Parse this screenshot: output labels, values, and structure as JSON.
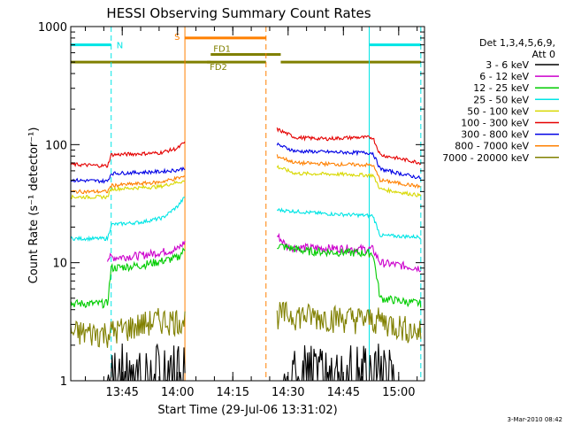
{
  "chart_data": {
    "type": "line",
    "title": "HESSI Observing Summary Count Rates",
    "xlabel": "Start Time (29-Jul-06 13:31:02)",
    "ylabel": "Count Rate (s⁻¹ detector⁻¹)",
    "yscale": "log",
    "ylim": [
      1,
      1000
    ],
    "xlim": [
      "13:31:02",
      "15:07:00"
    ],
    "x_ticks": [
      "13:45",
      "14:00",
      "14:15",
      "14:30",
      "14:45",
      "15:00"
    ],
    "y_ticks": [
      "1",
      "10",
      "100",
      "1000"
    ],
    "legend_title": [
      "Det 1,3,4,5,6,9,",
      "Att 0"
    ],
    "legend_position": "right",
    "footer_date": "3-Mar-2010 08:42",
    "gap": [
      "14:02",
      "14:27"
    ],
    "series": [
      {
        "name": "3 - 6 keV",
        "color": "#000000",
        "points": [
          [
            "13:41",
            1.4
          ],
          [
            "13:55",
            1.4
          ],
          [
            "14:01",
            1.4
          ],
          [
            "14:29",
            1.6
          ],
          [
            "14:40",
            1.5
          ],
          [
            "14:55",
            1.5
          ],
          [
            "14:59",
            1.4
          ]
        ]
      },
      {
        "name": "6 - 12 keV",
        "color": "#cc00cc",
        "points": [
          [
            "13:41",
            11
          ],
          [
            "13:50",
            11.5
          ],
          [
            "14:00",
            13
          ],
          [
            "14:02",
            15
          ],
          [
            "14:27",
            17
          ],
          [
            "14:30",
            13.5
          ],
          [
            "14:40",
            13.3
          ],
          [
            "14:53",
            13
          ],
          [
            "14:55",
            10
          ],
          [
            "15:06",
            9
          ]
        ]
      },
      {
        "name": "12 - 25 keV",
        "color": "#00cc00",
        "points": [
          [
            "13:31",
            4.5
          ],
          [
            "13:41",
            4.5
          ],
          [
            "13:42",
            9
          ],
          [
            "13:50",
            9.5
          ],
          [
            "14:00",
            11
          ],
          [
            "14:02",
            13
          ],
          [
            "14:27",
            14
          ],
          [
            "14:35",
            12.5
          ],
          [
            "14:53",
            12
          ],
          [
            "14:55",
            5
          ],
          [
            "15:06",
            4.5
          ]
        ]
      },
      {
        "name": "25 - 50 keV",
        "color": "#00e5e5",
        "points": [
          [
            "13:31",
            16
          ],
          [
            "13:41",
            16
          ],
          [
            "13:42",
            21
          ],
          [
            "13:50",
            22
          ],
          [
            "13:56",
            24
          ],
          [
            "14:00",
            30
          ],
          [
            "14:02",
            36
          ],
          [
            "14:27",
            28
          ],
          [
            "14:40",
            26
          ],
          [
            "14:53",
            25
          ],
          [
            "14:55",
            17
          ],
          [
            "15:06",
            16.5
          ]
        ]
      },
      {
        "name": "50 - 100 keV",
        "color": "#d8d800",
        "points": [
          [
            "13:31",
            36
          ],
          [
            "13:41",
            36
          ],
          [
            "13:42",
            42
          ],
          [
            "13:55",
            44
          ],
          [
            "14:00",
            48
          ],
          [
            "14:27",
            65
          ],
          [
            "14:32",
            57
          ],
          [
            "14:45",
            56
          ],
          [
            "14:53",
            55
          ],
          [
            "14:55",
            42
          ],
          [
            "15:06",
            37
          ]
        ]
      },
      {
        "name": "100 - 300 keV",
        "color": "#e50000",
        "points": [
          [
            "13:31",
            68
          ],
          [
            "13:41",
            66
          ],
          [
            "13:42",
            82
          ],
          [
            "13:55",
            85
          ],
          [
            "14:00",
            93
          ],
          [
            "14:02",
            105
          ],
          [
            "14:27",
            135
          ],
          [
            "14:32",
            115
          ],
          [
            "14:40",
            112
          ],
          [
            "14:48",
            115
          ],
          [
            "14:53",
            115
          ],
          [
            "14:55",
            82
          ],
          [
            "15:06",
            70
          ]
        ]
      },
      {
        "name": "300 - 800 keV",
        "color": "#0000e5",
        "points": [
          [
            "13:31",
            50
          ],
          [
            "13:41",
            49
          ],
          [
            "13:42",
            57
          ],
          [
            "13:55",
            59
          ],
          [
            "14:00",
            61
          ],
          [
            "14:27",
            100
          ],
          [
            "14:32",
            88
          ],
          [
            "14:45",
            86
          ],
          [
            "14:53",
            85
          ],
          [
            "14:55",
            62
          ],
          [
            "15:06",
            52
          ]
        ]
      },
      {
        "name": "800 - 7000 keV",
        "color": "#ff8000",
        "points": [
          [
            "13:31",
            40
          ],
          [
            "13:41",
            40
          ],
          [
            "13:42",
            45
          ],
          [
            "13:55",
            48
          ],
          [
            "14:00",
            52
          ],
          [
            "14:27",
            80
          ],
          [
            "14:32",
            70
          ],
          [
            "14:45",
            68
          ],
          [
            "14:53",
            67
          ],
          [
            "14:55",
            50
          ],
          [
            "15:06",
            44
          ]
        ]
      },
      {
        "name": "7000 - 20000 keV",
        "color": "#808000",
        "points": [
          [
            "13:31",
            2.5
          ],
          [
            "13:41",
            2.5
          ],
          [
            "13:55",
            3.2
          ],
          [
            "14:01",
            3.2
          ],
          [
            "14:29",
            3.6
          ],
          [
            "14:40",
            3.4
          ],
          [
            "14:55",
            3.2
          ],
          [
            "15:06",
            2.5
          ]
        ]
      }
    ],
    "annotations": [
      {
        "label": "N",
        "color": "#00e5e5",
        "start": "13:31",
        "end": "13:42",
        "y": 700
      },
      {
        "label": "",
        "color": "#00e5e5",
        "start": "14:52",
        "end": "15:06",
        "y": 700
      },
      {
        "label": "S",
        "color": "#ff8000",
        "start": "14:02",
        "end": "14:24",
        "y": 800
      },
      {
        "label": "FD1",
        "color": "#808000",
        "start": "14:09",
        "end": "14:28",
        "y": 580
      },
      {
        "label": "FD2",
        "color": "#808000",
        "start": "14:08",
        "end": "14:09",
        "y": 500
      },
      {
        "label": "",
        "color": "#808000",
        "start": "13:31",
        "end": "14:24",
        "y": 500
      },
      {
        "label": "",
        "color": "#808000",
        "start": "14:28",
        "end": "15:06",
        "y": 500
      }
    ],
    "vertical_lines": [
      {
        "time": "13:42",
        "color": "#00e5e5",
        "style": "dashed"
      },
      {
        "time": "14:02",
        "color": "#ff8000",
        "style": "solid"
      },
      {
        "time": "14:24",
        "color": "#ff8000",
        "style": "dashed"
      },
      {
        "time": "14:52",
        "color": "#00e5e5",
        "style": "solid"
      },
      {
        "time": "15:06",
        "color": "#00e5e5",
        "style": "dashed"
      }
    ]
  }
}
